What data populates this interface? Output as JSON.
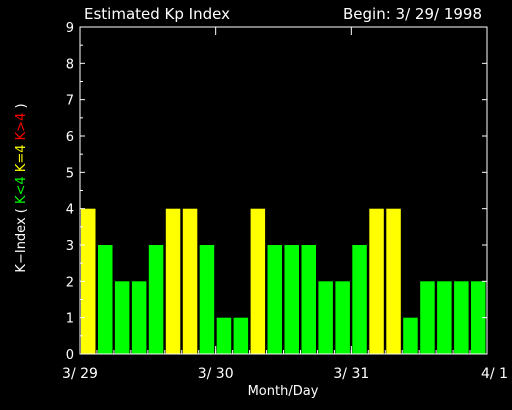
{
  "header": {
    "title": "Estimated Kp Index",
    "begin": "Begin: 3/ 29/ 1998"
  },
  "colors": {
    "background": "#000000",
    "axis": "#ffffff",
    "low": "#00ff00",
    "mid": "#ffff00",
    "high": "#ff0000"
  },
  "chart_data": {
    "type": "bar",
    "title": "Estimated Kp Index",
    "xlabel": "Month/Day",
    "ylabel_parts": [
      {
        "text": "K−Index (",
        "color": "#ffffff"
      },
      {
        "text": "K<4",
        "color": "#00ff00"
      },
      {
        "text": "K=4",
        "color": "#ffff00"
      },
      {
        "text": "K>4",
        "color": "#ff0000"
      },
      {
        "text": ")",
        "color": "#ffffff"
      }
    ],
    "ylim": [
      0,
      9
    ],
    "yticks": [
      "0",
      "1",
      "2",
      "3",
      "4",
      "5",
      "6",
      "7",
      "8",
      "9"
    ],
    "x_tick_labels": [
      "3/ 29",
      "3/ 30",
      "3/ 31",
      "4/ 1"
    ],
    "grid": false,
    "values": [
      4,
      3,
      2,
      2,
      3,
      4,
      4,
      3,
      1,
      1,
      4,
      3,
      3,
      3,
      2,
      2,
      3,
      4,
      4,
      1,
      2,
      2,
      2,
      2
    ]
  }
}
